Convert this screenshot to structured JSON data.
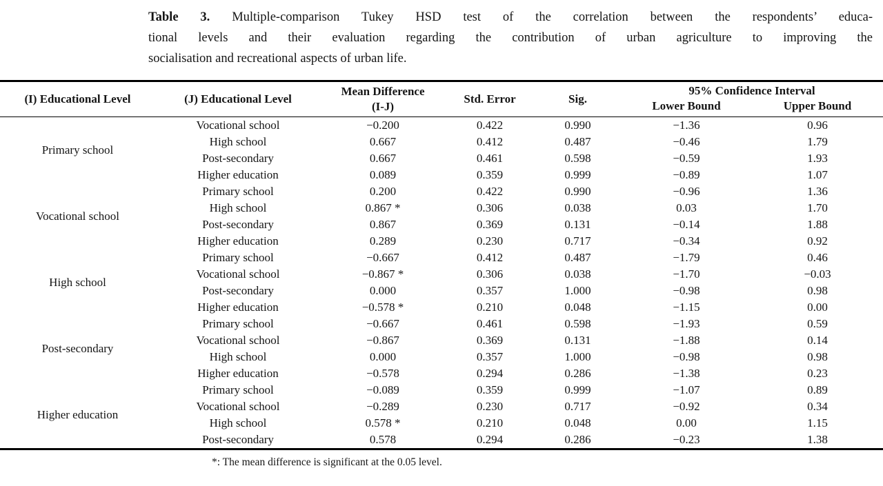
{
  "page": {
    "background": "#ffffff",
    "text_color": "#151515",
    "rule_color": "#000000"
  },
  "caption": {
    "label": "Table 3.",
    "line1": "Multiple-comparison Tukey HSD test of the correlation between the respondents’ educa-",
    "line2": "tional levels and their evaluation regarding the contribution of urban agriculture to improving the",
    "line3": "socialisation and recreational aspects of urban life."
  },
  "table": {
    "headers": {
      "col_i": "(I) Educational Level",
      "col_j": "(J) Educational Level",
      "mean_diff_line1": "Mean Difference",
      "mean_diff_line2": "(I-J)",
      "std_error": "Std. Error",
      "sig": "Sig.",
      "ci": "95% Confidence Interval",
      "lower": "Lower Bound",
      "upper": "Upper Bound"
    },
    "groups": [
      {
        "level": "Primary school",
        "rows": [
          {
            "j": "Vocational school",
            "mean_diff": "−0.200",
            "std_error": "0.422",
            "sig": "0.990",
            "lower": "−1.36",
            "upper": "0.96"
          },
          {
            "j": "High school",
            "mean_diff": "0.667",
            "std_error": "0.412",
            "sig": "0.487",
            "lower": "−0.46",
            "upper": "1.79"
          },
          {
            "j": "Post-secondary",
            "mean_diff": "0.667",
            "std_error": "0.461",
            "sig": "0.598",
            "lower": "−0.59",
            "upper": "1.93"
          },
          {
            "j": "Higher education",
            "mean_diff": "0.089",
            "std_error": "0.359",
            "sig": "0.999",
            "lower": "−0.89",
            "upper": "1.07"
          }
        ]
      },
      {
        "level": "Vocational school",
        "rows": [
          {
            "j": "Primary school",
            "mean_diff": "0.200",
            "std_error": "0.422",
            "sig": "0.990",
            "lower": "−0.96",
            "upper": "1.36"
          },
          {
            "j": "High school",
            "mean_diff": "0.867 *",
            "std_error": "0.306",
            "sig": "0.038",
            "lower": "0.03",
            "upper": "1.70"
          },
          {
            "j": "Post-secondary",
            "mean_diff": "0.867",
            "std_error": "0.369",
            "sig": "0.131",
            "lower": "−0.14",
            "upper": "1.88"
          },
          {
            "j": "Higher education",
            "mean_diff": "0.289",
            "std_error": "0.230",
            "sig": "0.717",
            "lower": "−0.34",
            "upper": "0.92"
          }
        ]
      },
      {
        "level": "High school",
        "rows": [
          {
            "j": "Primary school",
            "mean_diff": "−0.667",
            "std_error": "0.412",
            "sig": "0.487",
            "lower": "−1.79",
            "upper": "0.46"
          },
          {
            "j": "Vocational school",
            "mean_diff": "−0.867 *",
            "std_error": "0.306",
            "sig": "0.038",
            "lower": "−1.70",
            "upper": "−0.03"
          },
          {
            "j": "Post-secondary",
            "mean_diff": "0.000",
            "std_error": "0.357",
            "sig": "1.000",
            "lower": "−0.98",
            "upper": "0.98"
          },
          {
            "j": "Higher education",
            "mean_diff": "−0.578 *",
            "std_error": "0.210",
            "sig": "0.048",
            "lower": "−1.15",
            "upper": "0.00"
          }
        ]
      },
      {
        "level": "Post-secondary",
        "rows": [
          {
            "j": "Primary school",
            "mean_diff": "−0.667",
            "std_error": "0.461",
            "sig": "0.598",
            "lower": "−1.93",
            "upper": "0.59"
          },
          {
            "j": "Vocational school",
            "mean_diff": "−0.867",
            "std_error": "0.369",
            "sig": "0.131",
            "lower": "−1.88",
            "upper": "0.14"
          },
          {
            "j": "High school",
            "mean_diff": "0.000",
            "std_error": "0.357",
            "sig": "1.000",
            "lower": "−0.98",
            "upper": "0.98"
          },
          {
            "j": "Higher education",
            "mean_diff": "−0.578",
            "std_error": "0.294",
            "sig": "0.286",
            "lower": "−1.38",
            "upper": "0.23"
          }
        ]
      },
      {
        "level": "Higher education",
        "rows": [
          {
            "j": "Primary school",
            "mean_diff": "−0.089",
            "std_error": "0.359",
            "sig": "0.999",
            "lower": "−1.07",
            "upper": "0.89"
          },
          {
            "j": "Vocational school",
            "mean_diff": "−0.289",
            "std_error": "0.230",
            "sig": "0.717",
            "lower": "−0.92",
            "upper": "0.34"
          },
          {
            "j": "High school",
            "mean_diff": "0.578 *",
            "std_error": "0.210",
            "sig": "0.048",
            "lower": "0.00",
            "upper": "1.15"
          },
          {
            "j": "Post-secondary",
            "mean_diff": "0.578",
            "std_error": "0.294",
            "sig": "0.286",
            "lower": "−0.23",
            "upper": "1.38"
          }
        ]
      }
    ]
  },
  "footnote": "*: The mean difference is significant at the 0.05 level."
}
